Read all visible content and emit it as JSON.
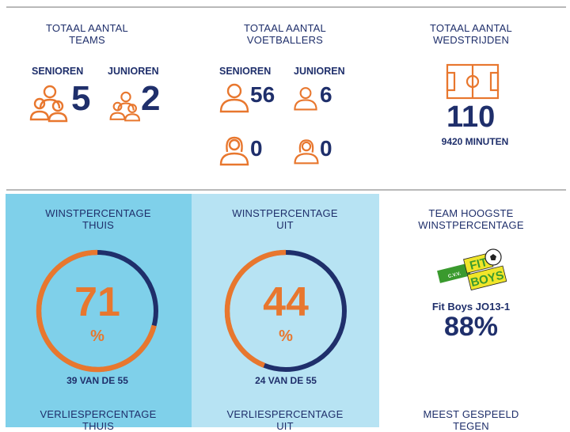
{
  "colors": {
    "navy": "#1f2f6b",
    "orange": "#e8772e",
    "panel_home": "#7fd0ea",
    "panel_away": "#b7e3f3",
    "rule": "#b9b9b9"
  },
  "teams": {
    "title_line1": "TOTAAL AANTAL",
    "title_line2": "TEAMS",
    "seniors_label": "SENIOREN",
    "seniors_value": "5",
    "juniors_label": "JUNIOREN",
    "juniors_value": "2",
    "icon": "people-group-icon"
  },
  "players": {
    "title_line1": "TOTAAL AANTAL",
    "title_line2": "VOETBALLERS",
    "seniors_label": "SENIOREN",
    "juniors_label": "JUNIOREN",
    "senior_male": "56",
    "junior_male": "6",
    "senior_female": "0",
    "junior_female": "0",
    "icon": "person-icon"
  },
  "matches": {
    "title_line1": "TOTAAL AANTAL",
    "title_line2": "WEDSTRIJDEN",
    "value": "110",
    "minutes": "9420 MINUTEN",
    "icon": "football-pitch-icon"
  },
  "win_home": {
    "title_line1": "WINSTPERCENTAGE",
    "title_line2": "THUIS",
    "value": "71",
    "unit": "%",
    "caption": "39 VAN DE 55",
    "fraction": 0.71
  },
  "win_away": {
    "title_line1": "WINSTPERCENTAGE",
    "title_line2": "UIT",
    "value": "44",
    "unit": "%",
    "caption": "24 VAN DE 55",
    "fraction": 0.44
  },
  "top_team": {
    "title_line1": "TEAM HOOGSTE",
    "title_line2": "WINSTPERCENTAGE",
    "logo_text_top": "FIT",
    "logo_text_bottom": "BOYS",
    "logo_prefix": "C.V.V.",
    "team_name": "Fit Boys JO13-1",
    "value": "88%"
  },
  "loss_home": {
    "title_line1": "VERLIESPERCENTAGE",
    "title_line2": "THUIS"
  },
  "loss_away": {
    "title_line1": "VERLIESPERCENTAGE",
    "title_line2": "UIT"
  },
  "most_played": {
    "title_line1": "MEEST GESPEELD",
    "title_line2": "TEGEN"
  }
}
